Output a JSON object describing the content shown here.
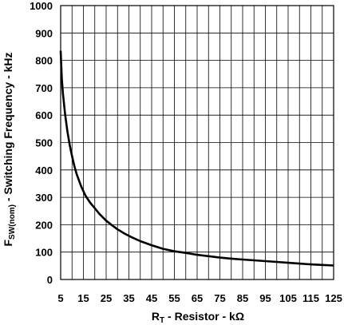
{
  "chart_data": {
    "type": "line",
    "xlabel": {
      "main": "R",
      "sub": "T",
      "rest": " - Resistor - kΩ"
    },
    "ylabel": {
      "main": "F",
      "sub": "SW(nom)",
      "rest": " - Switching Frequency - kHz"
    },
    "xlim": [
      5,
      125
    ],
    "ylim": [
      0,
      1000
    ],
    "xticks": [
      5,
      15,
      25,
      35,
      45,
      55,
      65,
      75,
      85,
      95,
      105,
      115,
      125
    ],
    "yticks": [
      0,
      100,
      200,
      300,
      400,
      500,
      600,
      700,
      800,
      900,
      1000
    ],
    "xgrid": [
      5,
      10,
      15,
      20,
      25,
      30,
      35,
      40,
      45,
      50,
      55,
      60,
      65,
      70,
      75,
      80,
      85,
      90,
      95,
      100,
      105,
      110,
      115,
      120,
      125
    ],
    "grid": true,
    "series": [
      {
        "color": "#000000",
        "x": [
          5,
          5.5,
          6,
          7,
          8,
          9,
          10,
          11,
          12,
          14,
          16,
          18,
          20,
          22,
          25,
          28,
          30,
          33,
          36,
          40,
          45,
          50,
          55,
          60,
          65,
          70,
          75,
          80,
          85,
          90,
          95,
          100,
          105,
          110,
          115,
          120,
          125
        ],
        "y": [
          835,
          735,
          680,
          600,
          540,
          490,
          450,
          415,
          385,
          340,
          305,
          280,
          260,
          240,
          215,
          195,
          183,
          168,
          155,
          140,
          125,
          112,
          103,
          97,
          90,
          85,
          80,
          76,
          73,
          70,
          67,
          64,
          61,
          58,
          55,
          53,
          51
        ]
      }
    ]
  }
}
